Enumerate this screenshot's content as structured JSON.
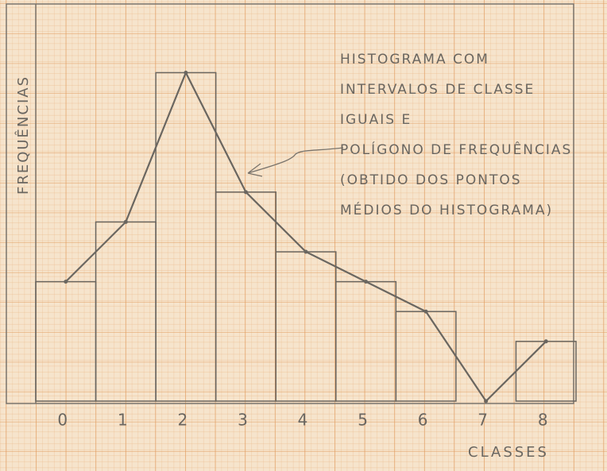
{
  "chart_data": {
    "type": "histogram",
    "ylabel": "FREQUÊNCIAS",
    "xlabel": "CLASSES",
    "annotation": [
      "HISTOGRAMA COM",
      "INTERVALOS DE CLASSE",
      "IGUAIS E",
      "POLÍGONO DE FREQUÊNCIAS",
      "(OBTIDO DOS PONTOS",
      "MÉDIOS DO HISTOGRAMA)"
    ],
    "categories": [
      "0",
      "1",
      "2",
      "3",
      "4",
      "5",
      "6",
      "7",
      "8"
    ],
    "values": [
      4,
      6,
      11,
      7,
      5,
      4,
      3,
      0,
      2
    ],
    "ylim": [
      0,
      13.3
    ],
    "color": "#6a6660",
    "frequency_polygon": true
  }
}
